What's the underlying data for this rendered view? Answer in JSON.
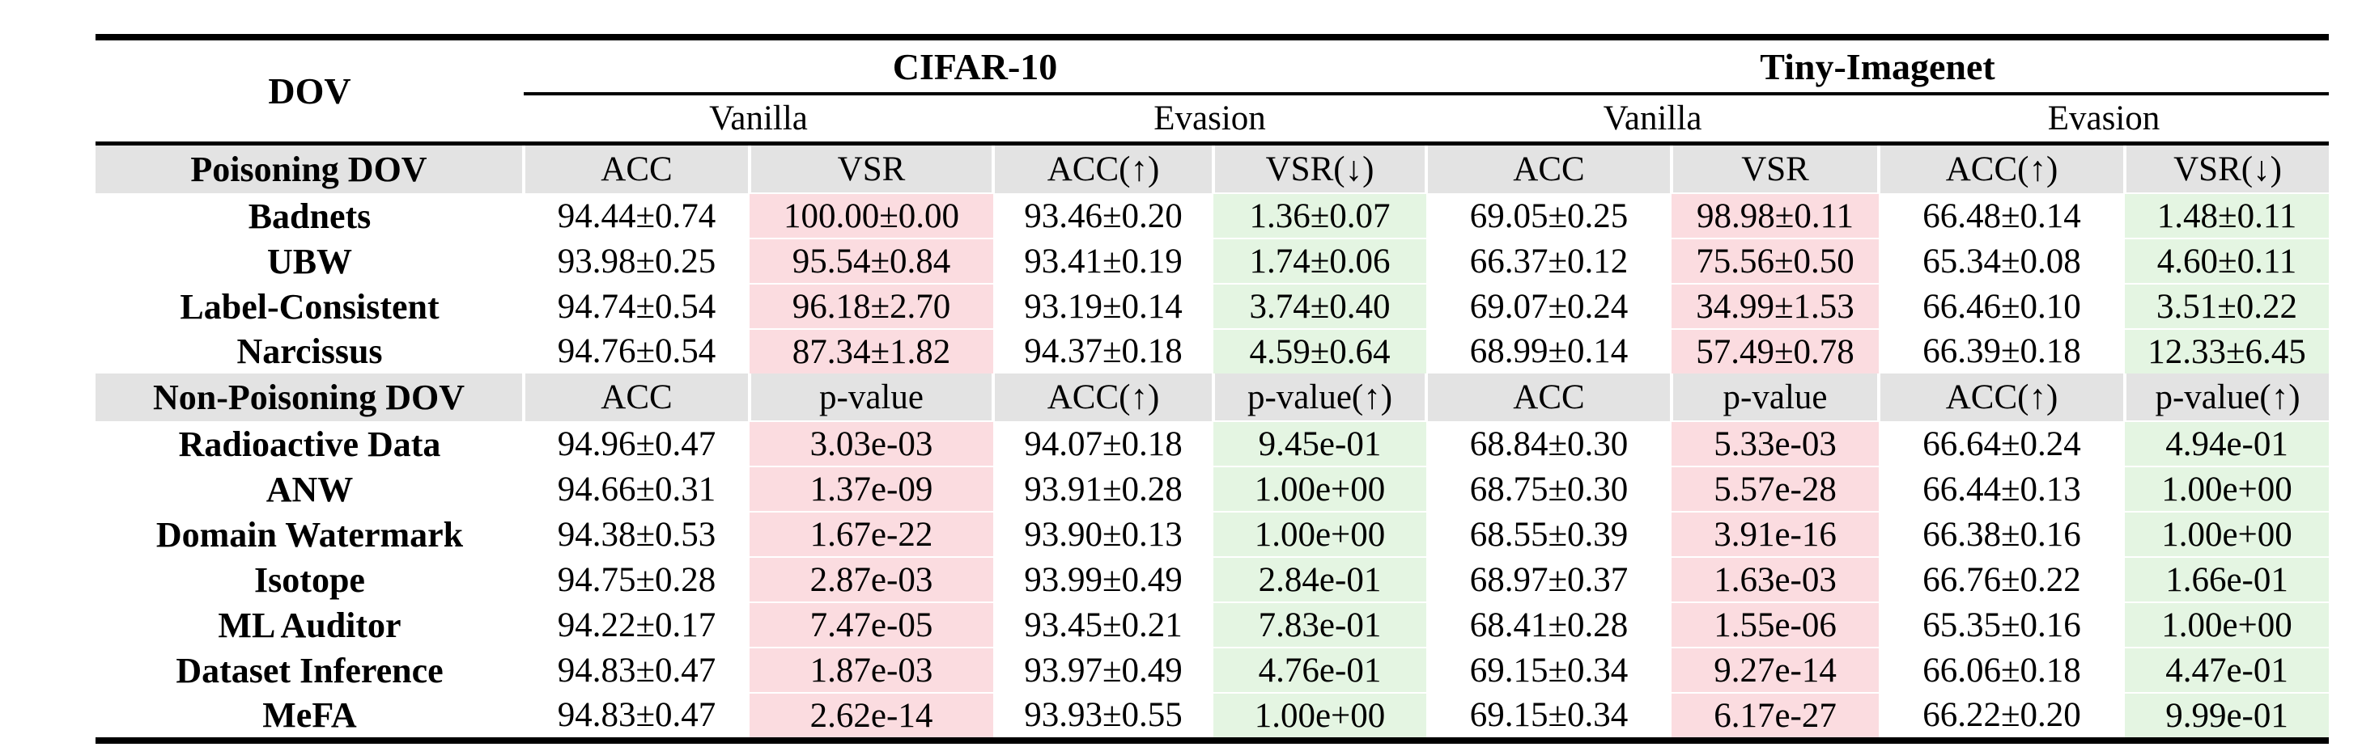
{
  "table": {
    "corner_label": "DOV",
    "datasets": [
      {
        "name": "CIFAR-10",
        "subgroups": [
          "Vanilla",
          "Evasion"
        ]
      },
      {
        "name": "Tiny-Imagenet",
        "subgroups": [
          "Vanilla",
          "Evasion"
        ]
      }
    ],
    "column_tint_pattern": [
      "white",
      "pink",
      "white",
      "green",
      "white",
      "pink",
      "white",
      "green"
    ],
    "colors": {
      "pink_highlight": "#fbdce0",
      "green_highlight": "#e4f5e2",
      "subheader_gray": "#e3e3e3",
      "rule_black": "#000000",
      "background": "#ffffff"
    },
    "sections": [
      {
        "label": "Poisoning DOV",
        "columns": [
          "ACC",
          "VSR",
          "ACC(↑)",
          "VSR(↓)",
          "ACC",
          "VSR",
          "ACC(↑)",
          "VSR(↓)"
        ],
        "rows": [
          {
            "label": "Badnets",
            "values": [
              "94.44±0.74",
              "100.00±0.00",
              "93.46±0.20",
              "1.36±0.07",
              "69.05±0.25",
              "98.98±0.11",
              "66.48±0.14",
              "1.48±0.11"
            ]
          },
          {
            "label": "UBW",
            "values": [
              "93.98±0.25",
              "95.54±0.84",
              "93.41±0.19",
              "1.74±0.06",
              "66.37±0.12",
              "75.56±0.50",
              "65.34±0.08",
              "4.60±0.11"
            ]
          },
          {
            "label": "Label-Consistent",
            "values": [
              "94.74±0.54",
              "96.18±2.70",
              "93.19±0.14",
              "3.74±0.40",
              "69.07±0.24",
              "34.99±1.53",
              "66.46±0.10",
              "3.51±0.22"
            ]
          },
          {
            "label": "Narcissus",
            "values": [
              "94.76±0.54",
              "87.34±1.82",
              "94.37±0.18",
              "4.59±0.64",
              "68.99±0.14",
              "57.49±0.78",
              "66.39±0.18",
              "12.33±6.45"
            ]
          }
        ]
      },
      {
        "label": "Non-Poisoning DOV",
        "columns": [
          "ACC",
          "p-value",
          "ACC(↑)",
          "p-value(↑)",
          "ACC",
          "p-value",
          "ACC(↑)",
          "p-value(↑)"
        ],
        "rows": [
          {
            "label": "Radioactive Data",
            "values": [
              "94.96±0.47",
              "3.03e-03",
              "94.07±0.18",
              "9.45e-01",
              "68.84±0.30",
              "5.33e-03",
              "66.64±0.24",
              "4.94e-01"
            ]
          },
          {
            "label": "ANW",
            "values": [
              "94.66±0.31",
              "1.37e-09",
              "93.91±0.28",
              "1.00e+00",
              "68.75±0.30",
              "5.57e-28",
              "66.44±0.13",
              "1.00e+00"
            ]
          },
          {
            "label": "Domain Watermark",
            "values": [
              "94.38±0.53",
              "1.67e-22",
              "93.90±0.13",
              "1.00e+00",
              "68.55±0.39",
              "3.91e-16",
              "66.38±0.16",
              "1.00e+00"
            ]
          },
          {
            "label": "Isotope",
            "values": [
              "94.75±0.28",
              "2.87e-03",
              "93.99±0.49",
              "2.84e-01",
              "68.97±0.37",
              "1.63e-03",
              "66.76±0.22",
              "1.66e-01"
            ]
          },
          {
            "label": "ML Auditor",
            "values": [
              "94.22±0.17",
              "7.47e-05",
              "93.45±0.21",
              "7.83e-01",
              "68.41±0.28",
              "1.55e-06",
              "65.35±0.16",
              "1.00e+00"
            ]
          },
          {
            "label": "Dataset Inference",
            "values": [
              "94.83±0.47",
              "1.87e-03",
              "93.97±0.49",
              "4.76e-01",
              "69.15±0.34",
              "9.27e-14",
              "66.06±0.18",
              "4.47e-01"
            ]
          },
          {
            "label": "MeFA",
            "values": [
              "94.83±0.47",
              "2.62e-14",
              "93.93±0.55",
              "1.00e+00",
              "69.15±0.34",
              "6.17e-27",
              "66.22±0.20",
              "9.99e-01"
            ]
          }
        ]
      }
    ]
  }
}
